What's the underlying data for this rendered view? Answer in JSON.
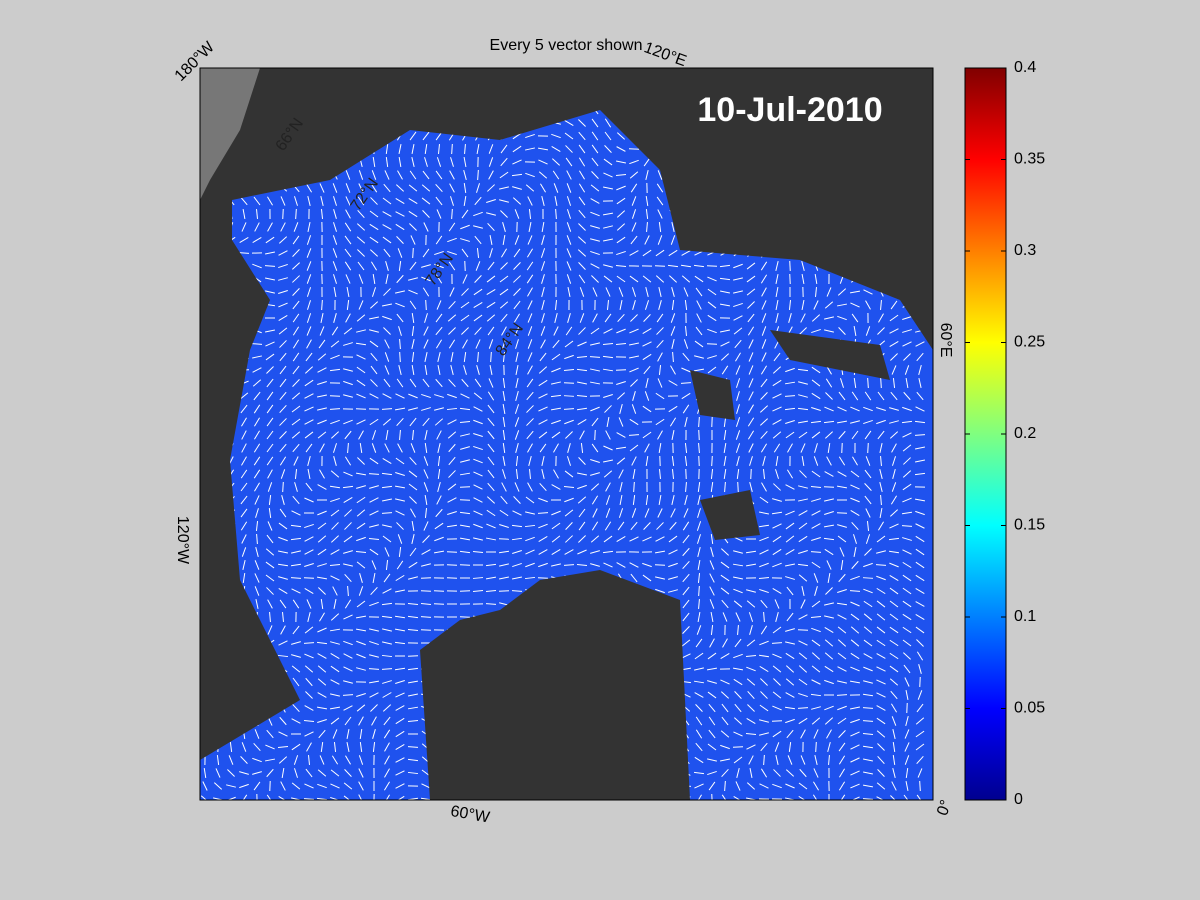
{
  "title": "Every 5 vector shown",
  "date": "10-Jul-2010",
  "map": {
    "longitude_labels": [
      "180°W",
      "120°E",
      "60°E",
      "0°",
      "60°W",
      "120°W"
    ],
    "latitude_labels": [
      "66°N",
      "72°N",
      "78°N",
      "84°N"
    ]
  },
  "colorbar": {
    "lim": [
      0,
      0.4
    ],
    "ticks": [
      0,
      0.05,
      0.1,
      0.15,
      0.2,
      0.25,
      0.3,
      0.35,
      0.4
    ]
  }
}
